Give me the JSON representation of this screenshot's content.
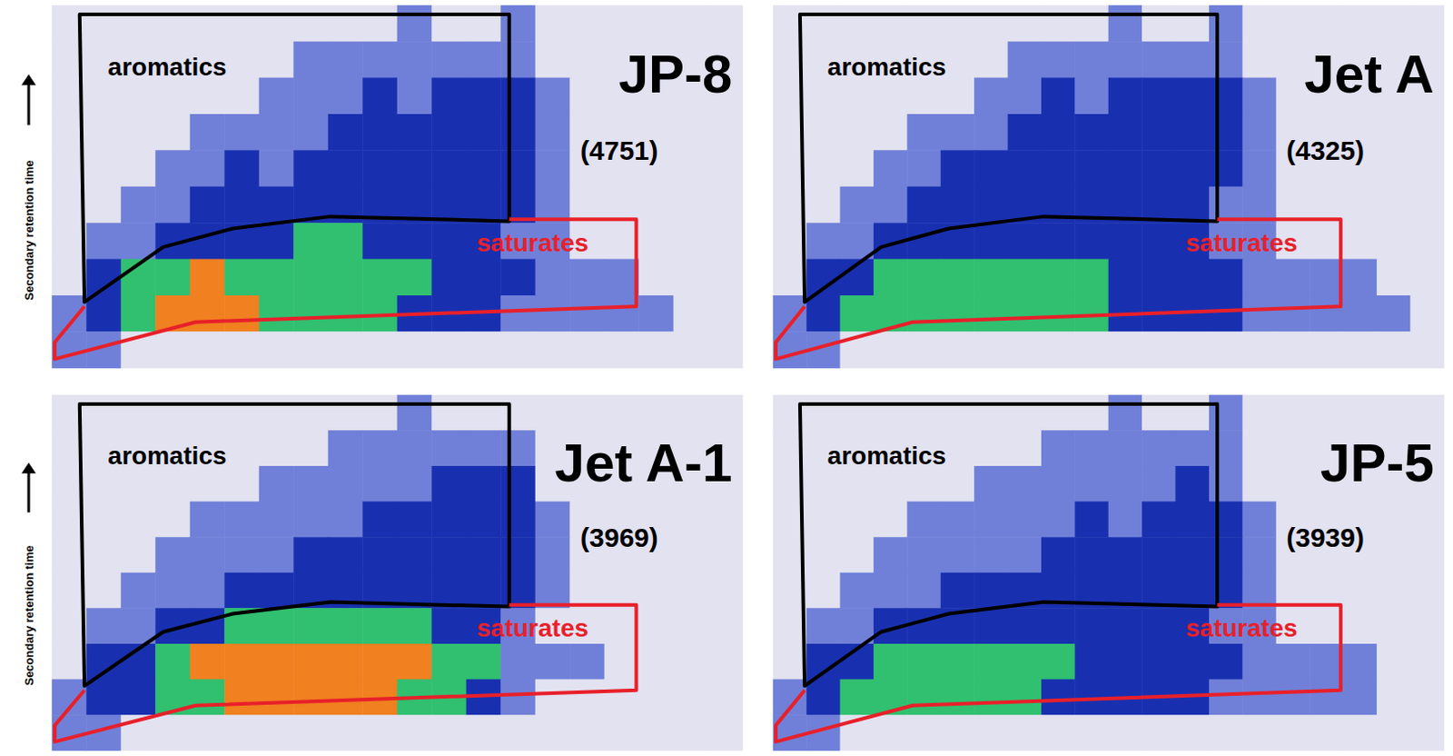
{
  "chart_data": [
    {
      "type": "heatmap",
      "title": "JP-8",
      "subtitle": "(4751)",
      "ylabel": "Secondary retention time",
      "tick_labels": false,
      "annotations": [
        {
          "text": "aromatics",
          "color": "#000000"
        },
        {
          "text": "saturates",
          "color": "#e8202a"
        }
      ],
      "zlim": [
        0,
        4
      ],
      "cells": [
        [
          0,
          0,
          0,
          0,
          0,
          0,
          0,
          0,
          0,
          0,
          1,
          0,
          0,
          1,
          0,
          0,
          0,
          0,
          0,
          0
        ],
        [
          0,
          0,
          0,
          0,
          0,
          0,
          0,
          1,
          1,
          1,
          1,
          1,
          1,
          1,
          0,
          0,
          0,
          0,
          0,
          0
        ],
        [
          0,
          0,
          0,
          0,
          0,
          0,
          1,
          1,
          1,
          2,
          1,
          2,
          2,
          2,
          1,
          0,
          0,
          0,
          0,
          0
        ],
        [
          0,
          0,
          0,
          0,
          1,
          1,
          1,
          1,
          2,
          2,
          2,
          2,
          2,
          2,
          1,
          0,
          0,
          0,
          0,
          0
        ],
        [
          0,
          0,
          0,
          1,
          1,
          2,
          1,
          2,
          2,
          2,
          2,
          2,
          2,
          2,
          1,
          0,
          0,
          0,
          0,
          0
        ],
        [
          0,
          0,
          1,
          1,
          2,
          2,
          2,
          2,
          2,
          2,
          2,
          2,
          2,
          2,
          1,
          0,
          0,
          0,
          0,
          0
        ],
        [
          0,
          1,
          1,
          2,
          2,
          2,
          2,
          3,
          3,
          2,
          2,
          2,
          2,
          1,
          1,
          0,
          0,
          0,
          0,
          0
        ],
        [
          0,
          2,
          3,
          3,
          4,
          3,
          3,
          3,
          3,
          3,
          3,
          2,
          2,
          2,
          1,
          1,
          1,
          0,
          0,
          0
        ],
        [
          1,
          2,
          3,
          4,
          4,
          4,
          3,
          3,
          3,
          3,
          2,
          2,
          2,
          1,
          1,
          1,
          1,
          1,
          0,
          0
        ],
        [
          1,
          1,
          0,
          0,
          0,
          0,
          0,
          0,
          0,
          0,
          0,
          0,
          0,
          0,
          0,
          0,
          0,
          0,
          0,
          0
        ]
      ]
    },
    {
      "type": "heatmap",
      "title": "Jet A",
      "subtitle": "(4325)",
      "tick_labels": false,
      "annotations": [
        {
          "text": "aromatics",
          "color": "#000000"
        },
        {
          "text": "saturates",
          "color": "#e8202a"
        }
      ],
      "zlim": [
        0,
        4
      ],
      "cells": [
        [
          0,
          0,
          0,
          0,
          0,
          0,
          0,
          0,
          0,
          0,
          1,
          0,
          0,
          1,
          0,
          0,
          0,
          0,
          0,
          0
        ],
        [
          0,
          0,
          0,
          0,
          0,
          0,
          0,
          1,
          1,
          1,
          1,
          1,
          1,
          1,
          0,
          0,
          0,
          0,
          0,
          0
        ],
        [
          0,
          0,
          0,
          0,
          0,
          0,
          1,
          1,
          2,
          1,
          2,
          2,
          2,
          2,
          1,
          0,
          0,
          0,
          0,
          0
        ],
        [
          0,
          0,
          0,
          0,
          1,
          1,
          1,
          2,
          2,
          2,
          2,
          2,
          2,
          2,
          1,
          0,
          0,
          0,
          0,
          0
        ],
        [
          0,
          0,
          0,
          1,
          1,
          2,
          2,
          2,
          2,
          2,
          2,
          2,
          2,
          2,
          1,
          0,
          0,
          0,
          0,
          0
        ],
        [
          0,
          0,
          1,
          1,
          2,
          2,
          2,
          2,
          2,
          2,
          2,
          2,
          2,
          1,
          1,
          0,
          0,
          0,
          0,
          0
        ],
        [
          0,
          1,
          1,
          2,
          2,
          2,
          2,
          2,
          2,
          2,
          2,
          2,
          2,
          1,
          1,
          0,
          0,
          0,
          0,
          0
        ],
        [
          0,
          2,
          2,
          3,
          3,
          3,
          3,
          3,
          3,
          3,
          2,
          2,
          2,
          2,
          1,
          1,
          1,
          1,
          0,
          0
        ],
        [
          1,
          2,
          3,
          3,
          3,
          3,
          3,
          3,
          3,
          3,
          2,
          2,
          2,
          2,
          1,
          1,
          1,
          1,
          1,
          0
        ],
        [
          1,
          1,
          0,
          0,
          0,
          0,
          0,
          0,
          0,
          0,
          0,
          0,
          0,
          0,
          0,
          0,
          0,
          0,
          0,
          0
        ]
      ]
    },
    {
      "type": "heatmap",
      "title": "Jet A-1",
      "subtitle": "(3969)",
      "ylabel": "Secondary retention time",
      "tick_labels": false,
      "annotations": [
        {
          "text": "aromatics",
          "color": "#000000"
        },
        {
          "text": "saturates",
          "color": "#e8202a"
        }
      ],
      "zlim": [
        0,
        4
      ],
      "cells": [
        [
          0,
          0,
          0,
          0,
          0,
          0,
          0,
          0,
          0,
          0,
          1,
          0,
          0,
          0,
          0,
          0,
          0,
          0,
          0,
          0
        ],
        [
          0,
          0,
          0,
          0,
          0,
          0,
          0,
          0,
          1,
          1,
          1,
          1,
          1,
          1,
          0,
          0,
          0,
          0,
          0,
          0
        ],
        [
          0,
          0,
          0,
          0,
          0,
          0,
          1,
          1,
          1,
          1,
          1,
          2,
          2,
          2,
          0,
          0,
          0,
          0,
          0,
          0
        ],
        [
          0,
          0,
          0,
          0,
          1,
          1,
          1,
          1,
          1,
          2,
          2,
          2,
          2,
          2,
          1,
          0,
          0,
          0,
          0,
          0
        ],
        [
          0,
          0,
          0,
          1,
          1,
          1,
          1,
          2,
          2,
          2,
          2,
          2,
          2,
          2,
          1,
          0,
          0,
          0,
          0,
          0
        ],
        [
          0,
          0,
          1,
          1,
          1,
          2,
          2,
          2,
          2,
          2,
          2,
          2,
          2,
          2,
          1,
          0,
          0,
          0,
          0,
          0
        ],
        [
          0,
          1,
          1,
          2,
          2,
          3,
          3,
          3,
          3,
          3,
          3,
          2,
          2,
          1,
          0,
          0,
          0,
          0,
          0,
          0
        ],
        [
          0,
          2,
          2,
          3,
          4,
          4,
          4,
          4,
          4,
          4,
          4,
          3,
          3,
          1,
          1,
          1,
          0,
          0,
          0,
          0
        ],
        [
          1,
          2,
          2,
          3,
          3,
          4,
          4,
          4,
          4,
          4,
          3,
          3,
          2,
          1,
          0,
          0,
          0,
          0,
          0,
          0
        ],
        [
          1,
          1,
          0,
          0,
          0,
          0,
          0,
          0,
          0,
          0,
          0,
          0,
          0,
          0,
          0,
          0,
          0,
          0,
          0,
          0
        ]
      ]
    },
    {
      "type": "heatmap",
      "title": "JP-5",
      "subtitle": "(3939)",
      "tick_labels": false,
      "annotations": [
        {
          "text": "aromatics",
          "color": "#000000"
        },
        {
          "text": "saturates",
          "color": "#e8202a"
        }
      ],
      "zlim": [
        0,
        4
      ],
      "cells": [
        [
          0,
          0,
          0,
          0,
          0,
          0,
          0,
          0,
          0,
          0,
          1,
          0,
          0,
          1,
          0,
          0,
          0,
          0,
          0,
          0
        ],
        [
          0,
          0,
          0,
          0,
          0,
          0,
          0,
          0,
          1,
          1,
          1,
          1,
          1,
          1,
          0,
          0,
          0,
          0,
          0,
          0
        ],
        [
          0,
          0,
          0,
          0,
          0,
          0,
          1,
          1,
          1,
          1,
          1,
          1,
          2,
          1,
          0,
          0,
          0,
          0,
          0,
          0
        ],
        [
          0,
          0,
          0,
          0,
          1,
          1,
          1,
          1,
          1,
          2,
          1,
          2,
          2,
          2,
          1,
          0,
          0,
          0,
          0,
          0
        ],
        [
          0,
          0,
          0,
          1,
          1,
          1,
          1,
          1,
          2,
          2,
          2,
          2,
          2,
          2,
          1,
          0,
          0,
          0,
          0,
          0
        ],
        [
          0,
          0,
          1,
          1,
          1,
          2,
          2,
          2,
          2,
          2,
          2,
          2,
          2,
          2,
          1,
          0,
          0,
          0,
          0,
          0
        ],
        [
          0,
          1,
          1,
          2,
          2,
          2,
          2,
          2,
          2,
          2,
          2,
          2,
          2,
          1,
          1,
          0,
          0,
          0,
          0,
          0
        ],
        [
          0,
          2,
          2,
          3,
          3,
          3,
          3,
          3,
          3,
          2,
          2,
          2,
          2,
          2,
          1,
          1,
          1,
          1,
          0,
          0
        ],
        [
          1,
          2,
          3,
          3,
          3,
          3,
          3,
          3,
          2,
          2,
          2,
          2,
          2,
          1,
          1,
          1,
          1,
          1,
          0,
          0
        ],
        [
          1,
          1,
          0,
          0,
          0,
          0,
          0,
          0,
          0,
          0,
          0,
          0,
          0,
          0,
          0,
          0,
          0,
          0,
          0,
          0
        ]
      ]
    }
  ]
}
